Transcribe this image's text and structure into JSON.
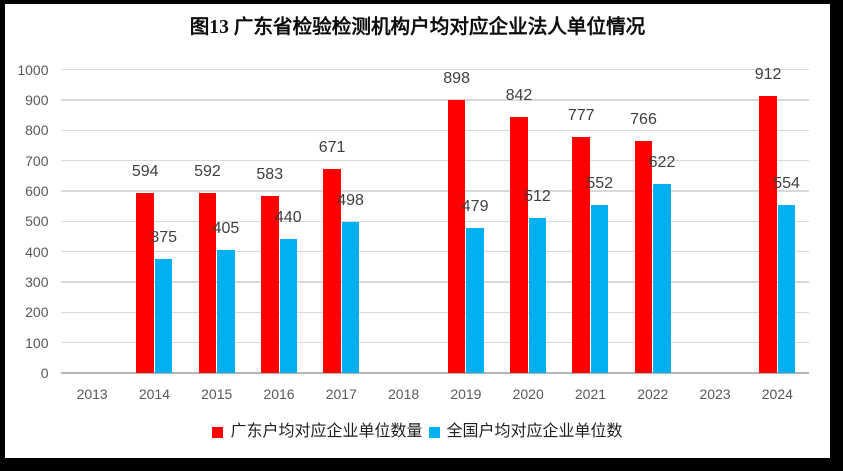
{
  "frame": {
    "color": "#000000",
    "background": "#ffffff"
  },
  "chart_data": {
    "type": "bar",
    "title": "图13 广东省检验检测机构户均对应企业法人单位情况",
    "categories": [
      "2013",
      "2014",
      "2015",
      "2016",
      "2017",
      "2018",
      "2019",
      "2020",
      "2021",
      "2022",
      "2023",
      "2024"
    ],
    "series": [
      {
        "name": "广东户均对应企业单位数量",
        "color": "#fe0000",
        "values": [
          null,
          594,
          592,
          583,
          671,
          null,
          898,
          842,
          777,
          766,
          null,
          912
        ]
      },
      {
        "name": "全国户均对应企业单位数",
        "color": "#00b0f0",
        "values": [
          null,
          375,
          405,
          440,
          498,
          null,
          479,
          512,
          552,
          622,
          null,
          554
        ]
      }
    ],
    "ylim": [
      0,
      1000
    ],
    "yticks": [
      "0",
      "100",
      "200",
      "300",
      "400",
      "500",
      "600",
      "700",
      "800",
      "900",
      "1000"
    ],
    "grid": true,
    "legend_position": "bottom",
    "data_labels": true
  },
  "style": {
    "grid_color": "#d9d9d9",
    "axis_line_color": "#b5b5b5",
    "tick_text_color": "#595959",
    "data_label_color": "#3f3f3f",
    "title_color": "#0d0d0d",
    "legend_text_color": "#1f1f1f"
  }
}
